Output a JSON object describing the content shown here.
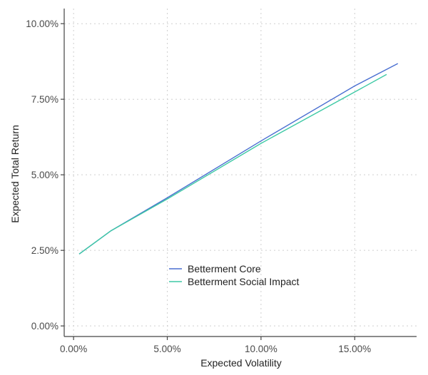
{
  "chart_data": {
    "type": "line",
    "xlabel": "Expected Volatility",
    "ylabel": "Expected Total Return",
    "xlim": [
      -0.5,
      18.3
    ],
    "ylim": [
      -0.35,
      10.5
    ],
    "x_ticks": [
      0,
      5,
      10,
      15
    ],
    "x_tick_labels": [
      "0.00%",
      "5.00%",
      "10.00%",
      "15.00%"
    ],
    "y_ticks": [
      0,
      2.5,
      5,
      7.5,
      10
    ],
    "y_tick_labels": [
      "0.00%",
      "2.50%",
      "5.00%",
      "7.50%",
      "10.00%"
    ],
    "grid": true,
    "legend_position": "inside-bottom-center",
    "series": [
      {
        "name": "Betterment Core",
        "color": "#4a6fd1",
        "x": [
          0.3,
          2.0,
          5.0,
          10.0,
          15.0,
          17.3
        ],
        "y": [
          2.38,
          3.15,
          4.24,
          6.12,
          7.94,
          8.68
        ]
      },
      {
        "name": "Betterment Social Impact",
        "color": "#3ec9a5",
        "x": [
          0.3,
          2.0,
          5.0,
          10.0,
          15.0,
          16.7
        ],
        "y": [
          2.38,
          3.15,
          4.2,
          6.04,
          7.74,
          8.32
        ]
      }
    ]
  }
}
